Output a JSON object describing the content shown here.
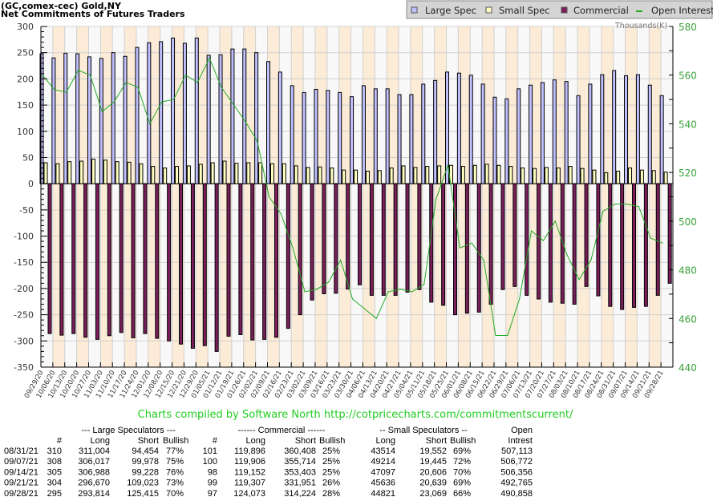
{
  "header": {
    "line1": "(GC,comex-cec) Gold,NY",
    "line2": "Net Commitments of Futures Traders"
  },
  "legend": {
    "items": [
      {
        "label": "Large Spec",
        "color": "#c0c0ff",
        "icon": "square"
      },
      {
        "label": "Small Spec",
        "color": "#ffffc0",
        "icon": "square"
      },
      {
        "label": "Commercial",
        "color": "#7a1f5c",
        "icon": "square"
      },
      {
        "label": "Open Interest",
        "color": "#22aa22",
        "icon": "line"
      }
    ]
  },
  "chart_data": {
    "type": "bar",
    "title": "Net Commitments of Futures Traders",
    "left_axis": {
      "ylim": [
        -350,
        300
      ],
      "ticks": [
        300,
        250,
        200,
        150,
        100,
        50,
        0,
        -50,
        -100,
        -150,
        -200,
        -250,
        -300,
        -350
      ]
    },
    "right_axis": {
      "label": "Thousands(K)",
      "ylim": [
        440,
        580
      ],
      "ticks": [
        580,
        560,
        540,
        520,
        500,
        480,
        460,
        440
      ]
    },
    "grid": true,
    "legend_position": "top-right",
    "categories": [
      "09/29/20",
      "10/06/20",
      "10/13/20",
      "10/20/20",
      "10/27/20",
      "11/03/20",
      "11/10/20",
      "11/17/20",
      "11/24/20",
      "12/01/20",
      "12/08/20",
      "12/15/20",
      "12/21/20",
      "12/29/20",
      "01/05/21",
      "01/12/21",
      "01/19/21",
      "01/26/21",
      "02/02/21",
      "02/09/21",
      "02/16/21",
      "02/23/21",
      "03/02/21",
      "03/09/21",
      "03/16/21",
      "03/23/21",
      "03/30/21",
      "04/06/21",
      "04/13/21",
      "04/20/21",
      "04/27/21",
      "05/04/21",
      "05/11/21",
      "05/18/21",
      "05/25/21",
      "06/01/21",
      "06/08/21",
      "06/15/21",
      "06/22/21",
      "06/29/21",
      "07/06/21",
      "07/13/21",
      "07/20/21",
      "07/27/21",
      "08/03/21",
      "08/10/21",
      "08/17/21",
      "08/24/21",
      "08/31/21",
      "09/07/21",
      "09/14/21",
      "09/21/21",
      "09/28/21"
    ],
    "series": [
      {
        "name": "Large Spec",
        "axis": "left",
        "color": "#c0c0ff",
        "values": [
          248,
          240,
          249,
          248,
          242,
          239,
          250,
          243,
          260,
          269,
          271,
          278,
          268,
          278,
          245,
          246,
          257,
          257,
          250,
          233,
          213,
          187,
          174,
          180,
          178,
          174,
          166,
          187,
          181,
          181,
          170,
          170,
          190,
          197,
          213,
          211,
          207,
          190,
          165,
          162,
          181,
          188,
          193,
          198,
          195,
          168,
          190,
          208,
          216,
          206,
          208,
          188,
          168
        ]
      },
      {
        "name": "Small Spec",
        "axis": "left",
        "color": "#ffffc0",
        "values": [
          40,
          38,
          42,
          43,
          47,
          45,
          42,
          41,
          38,
          33,
          30,
          33,
          34,
          37,
          40,
          43,
          39,
          40,
          40,
          38,
          38,
          34,
          31,
          32,
          30,
          26,
          26,
          24,
          25,
          30,
          34,
          31,
          33,
          34,
          35,
          33,
          35,
          37,
          35,
          33,
          30,
          29,
          31,
          30,
          33,
          29,
          26,
          21,
          24,
          30,
          26,
          25,
          22
        ]
      },
      {
        "name": "Commercial",
        "axis": "left",
        "color": "#7a1f5c",
        "values": [
          -286,
          -289,
          -286,
          -293,
          -297,
          -290,
          -284,
          -294,
          -286,
          -295,
          -300,
          -306,
          -314,
          -309,
          -320,
          -291,
          -288,
          -298,
          -297,
          -293,
          -276,
          -250,
          -222,
          -210,
          -209,
          -201,
          -193,
          -213,
          -213,
          -213,
          -207,
          -202,
          -226,
          -232,
          -250,
          -247,
          -245,
          -230,
          -202,
          -196,
          -213,
          -220,
          -226,
          -228,
          -230,
          -196,
          -214,
          -234,
          -240,
          -236,
          -234,
          -213,
          -190
        ]
      },
      {
        "name": "Open Interest",
        "axis": "right",
        "color": "#22aa22",
        "type": "line",
        "values": [
          560,
          554,
          553,
          562,
          560,
          545,
          549,
          557,
          555,
          540,
          549,
          550,
          560,
          557,
          567,
          555,
          548,
          541,
          533,
          510,
          503,
          489,
          471,
          472,
          475,
          484,
          468,
          464,
          460,
          471,
          472,
          471,
          474,
          509,
          523,
          489,
          491,
          484,
          453,
          453,
          468,
          496,
          492,
          500,
          486,
          476,
          484,
          504,
          507,
          507,
          506,
          493,
          491
        ]
      }
    ]
  },
  "credit": "Charts compiled by Software North  http://cotpricecharts.com/commitmentscurrent/",
  "table": {
    "group_headers": [
      "--- Large Speculators ---",
      "------ Commercial ------",
      "-- Small Speculators --",
      "Open"
    ],
    "columns": [
      "#",
      "Long",
      "Short",
      "Bullish",
      "#",
      "Long",
      "Short",
      "Bullish",
      "Long",
      "Short",
      "Bullish",
      "Intrest"
    ],
    "rows": [
      [
        "08/31/21",
        "310",
        "311,004",
        "94,454",
        "77%",
        "101",
        "119,896",
        "360,408",
        "25%",
        "43514",
        "19,552",
        "69%",
        "507,113"
      ],
      [
        "09/07/21",
        "308",
        "306,017",
        "99,978",
        "75%",
        "100",
        "119,906",
        "355,714",
        "25%",
        "49214",
        "19,445",
        "72%",
        "506,772"
      ],
      [
        "09/14/21",
        "305",
        "306,988",
        "99,228",
        "76%",
        "98",
        "119,152",
        "353,403",
        "25%",
        "47097",
        "20,606",
        "70%",
        "506,356"
      ],
      [
        "09/21/21",
        "304",
        "296,670",
        "109,023",
        "73%",
        "99",
        "119,307",
        "331,951",
        "26%",
        "45636",
        "20,639",
        "69%",
        "492,765"
      ],
      [
        "09/28/21",
        "295",
        "293,814",
        "125,415",
        "70%",
        "97",
        "124,073",
        "314,224",
        "28%",
        "44821",
        "23,069",
        "66%",
        "490,858"
      ]
    ]
  }
}
